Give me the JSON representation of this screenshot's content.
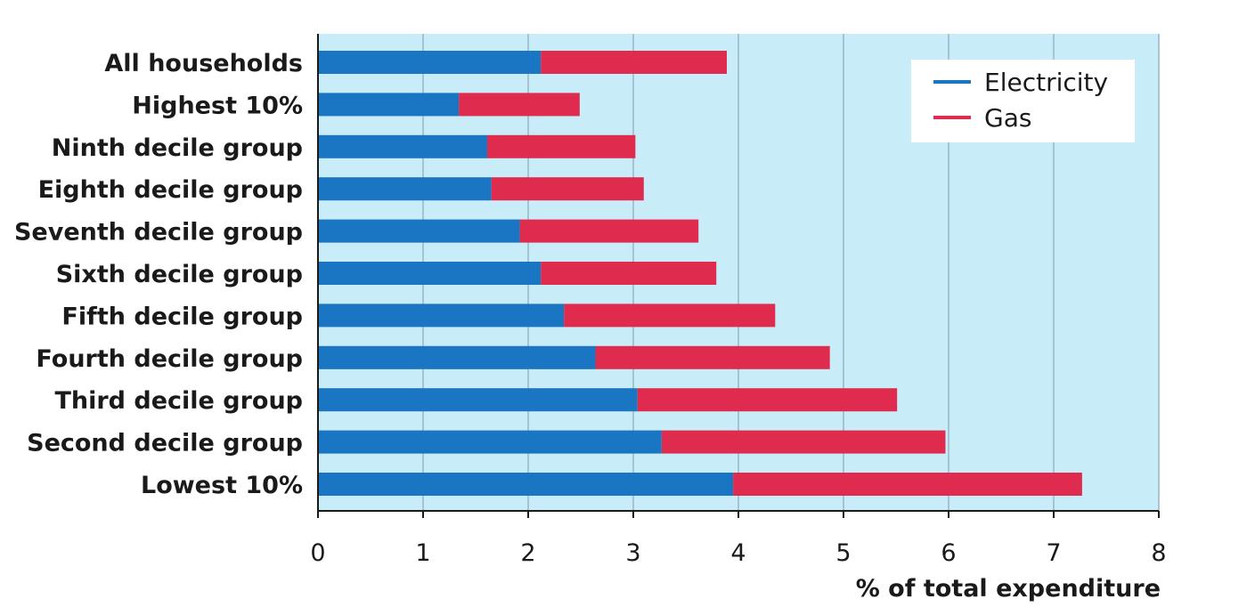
{
  "chart_data": {
    "type": "bar",
    "orientation": "horizontal",
    "stacked": true,
    "categories": [
      "All households",
      "Highest 10%",
      "Ninth decile group",
      "Eighth decile group",
      "Seventh decile group",
      "Sixth decile group",
      "Fifth decile group",
      "Fourth decile group",
      "Third decile group",
      "Second decile group",
      "Lowest 10%"
    ],
    "series": [
      {
        "name": "Electricity",
        "color": "#1a75c2",
        "values": [
          2.12,
          1.34,
          1.61,
          1.65,
          1.92,
          2.12,
          2.34,
          2.64,
          3.04,
          3.27,
          3.95
        ]
      },
      {
        "name": "Gas",
        "color": "#de2b4e",
        "values": [
          1.77,
          1.15,
          1.41,
          1.45,
          1.7,
          1.67,
          2.01,
          2.23,
          2.47,
          2.7,
          3.32
        ]
      }
    ],
    "xlabel": "% of total expenditure",
    "xlim": [
      0,
      8
    ],
    "xticks": [
      "0",
      "1",
      "2",
      "3",
      "4",
      "5",
      "6",
      "7",
      "8"
    ],
    "grid": true,
    "legend_position": "top-right",
    "plot_background": "#c9ecf9",
    "grid_color": "#9ab3c9"
  }
}
